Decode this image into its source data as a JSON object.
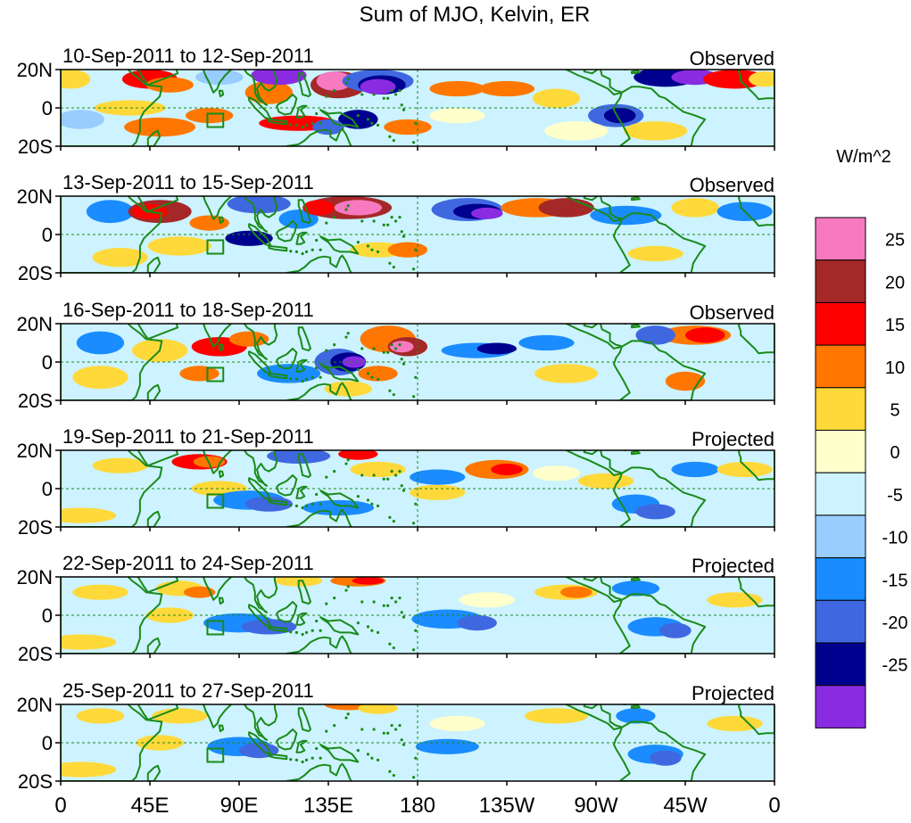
{
  "title": "Sum of MJO, Kelvin, ER",
  "colorbar": {
    "units": "W/m^2",
    "labels": [
      "25",
      "20",
      "15",
      "10",
      "5",
      "0",
      "-5",
      "-10",
      "-15",
      "-20",
      "-25"
    ],
    "colors": [
      "#f779c0",
      "#a52828",
      "#ff0000",
      "#ff7700",
      "#ffd93a",
      "#ffffcc",
      "#ccf3ff",
      "#99ccff",
      "#1a8cff",
      "#3f68e0",
      "#00008f",
      "#8a2be2"
    ]
  },
  "lat_labels": [
    "20N",
    "0",
    "20S"
  ],
  "lon_labels": [
    "0",
    "45E",
    "90E",
    "135E",
    "180",
    "135W",
    "90W",
    "45W",
    "0"
  ],
  "panels": [
    {
      "date": "10-Sep-2011 to 12-Sep-2011",
      "type": "Observed"
    },
    {
      "date": "13-Sep-2011 to 15-Sep-2011",
      "type": "Observed"
    },
    {
      "date": "16-Sep-2011 to 18-Sep-2011",
      "type": "Observed"
    },
    {
      "date": "19-Sep-2011 to 21-Sep-2011",
      "type": "Projected"
    },
    {
      "date": "22-Sep-2011 to 24-Sep-2011",
      "type": "Projected"
    },
    {
      "date": "25-Sep-2011 to 27-Sep-2011",
      "type": "Projected"
    }
  ],
  "map": {
    "lon_range": [
      0,
      360
    ],
    "lat_range": [
      -20,
      20
    ],
    "land_color": "#1a8a1a",
    "background_color": "#ccf3ff"
  }
}
